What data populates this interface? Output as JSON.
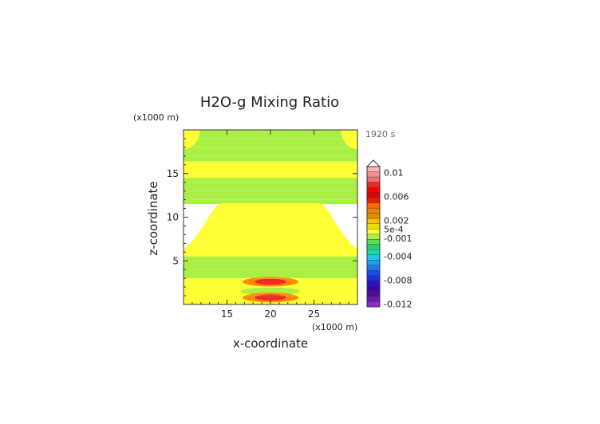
{
  "chart_data": {
    "type": "heatmap",
    "title": "H2O-g Mixing Ratio",
    "time_label": "1920 s",
    "xlabel": "x-coordinate",
    "ylabel": "z-coordinate",
    "x_scale_label": "(x1000 m)",
    "y_scale_label": "(x1000 m)",
    "xlim": [
      10,
      30
    ],
    "ylim": [
      0,
      20
    ],
    "xticks": [
      15,
      20,
      25
    ],
    "yticks": [
      5,
      10,
      15
    ],
    "x_tick_labels": [
      "15",
      "20",
      "25"
    ],
    "y_tick_labels": [
      "5",
      "10",
      "15"
    ],
    "colorbar": {
      "labels": [
        {
          "value": 0.01,
          "text": "0.01"
        },
        {
          "value": 0.006,
          "text": "0.006"
        },
        {
          "value": 0.002,
          "text": "0.002"
        },
        {
          "value": 0.0005,
          "text": "5e-4"
        },
        {
          "value": -0.001,
          "text": "-0.001"
        },
        {
          "value": -0.004,
          "text": "-0.004"
        },
        {
          "value": -0.008,
          "text": "-0.008"
        },
        {
          "value": -0.012,
          "text": "-0.012"
        }
      ],
      "colors_top_to_bottom": [
        "#f6b5b5",
        "#f28f8f",
        "#ee7070",
        "#ea2a2a",
        "#ff0000",
        "#e80000",
        "#dd2400",
        "#ff6a00",
        "#f08000",
        "#d89000",
        "#ffc000",
        "#eadf00",
        "#ffff33",
        "#aaf044",
        "#55e055",
        "#2ccf6a",
        "#18d8b0",
        "#20c8e8",
        "#1aa0f0",
        "#1e78f0",
        "#1a4ee8",
        "#1a2fd8",
        "#2a10c8",
        "#3a08a8",
        "#520aa0",
        "#6a18b0",
        "#8a30c8"
      ],
      "extend_max": true
    },
    "field_colors": {
      "positive_small": "#ffff33",
      "negative_small": "#aaf044",
      "moderate": "#ff8c00",
      "high": "#ee2a2a"
    },
    "regions": [
      {
        "kind": "band",
        "z_bottom": 16.4,
        "z_top": 20,
        "value": -0.0005
      },
      {
        "kind": "corner_cap",
        "side": "left",
        "value": 0.0003
      },
      {
        "kind": "corner_cap",
        "side": "right",
        "value": 0.0003
      },
      {
        "kind": "band",
        "z_bottom": 14.5,
        "z_top": 16.4,
        "value": 0.0003
      },
      {
        "kind": "band",
        "z_bottom": 11.5,
        "z_top": 14.5,
        "value": -0.0005
      },
      {
        "kind": "dome",
        "z_base": 5.5,
        "z_top": 11.6,
        "value": 0.0003
      },
      {
        "kind": "band",
        "z_bottom": 3.0,
        "z_top": 5.5,
        "value": -0.0005
      },
      {
        "kind": "band",
        "z_bottom": 0,
        "z_top": 3.0,
        "value": 0.0003
      },
      {
        "kind": "blob",
        "x": 20,
        "z": 2.6,
        "value": 0.002
      },
      {
        "kind": "blob",
        "x": 20,
        "z": 2.6,
        "value": 0.006
      },
      {
        "kind": "blob",
        "x": 20,
        "z": 1.5,
        "value": -0.0005
      },
      {
        "kind": "blob",
        "x": 20,
        "z": 0.8,
        "value": 0.002
      },
      {
        "kind": "blob",
        "x": 20,
        "z": 0.8,
        "value": 0.006
      }
    ]
  }
}
